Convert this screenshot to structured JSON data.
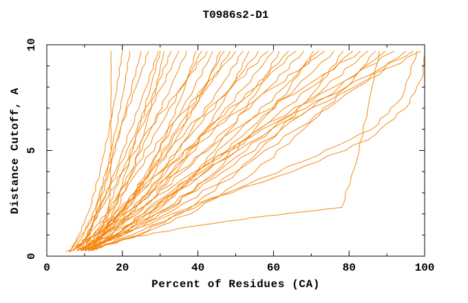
{
  "chart_data": {
    "type": "line",
    "title": "T0986s2-D1",
    "xlabel": "Percent of Residues (CA)",
    "ylabel": "Distance Cutoff, A",
    "xlim": [
      0,
      100
    ],
    "ylim": [
      0,
      10
    ],
    "x_major_ticks": [
      0,
      20,
      40,
      60,
      80,
      100
    ],
    "x_minor_step": 10,
    "y_major_ticks": [
      0,
      5,
      10
    ],
    "y_minor_step": 1,
    "grid": false,
    "legend": "none",
    "line_color": "#F5870F",
    "axis_color": "#000000",
    "background": "#FFFFFF",
    "series": [
      [
        [
          9,
          0.25
        ],
        [
          13,
          0.8
        ],
        [
          16,
          1.5
        ],
        [
          16.8,
          3
        ],
        [
          17,
          5
        ],
        [
          17,
          7.5
        ],
        [
          17,
          9.7
        ]
      ],
      [
        [
          7,
          0.25
        ],
        [
          9.7,
          1
        ],
        [
          12.7,
          2.2
        ],
        [
          15.7,
          4
        ],
        [
          18.3,
          6
        ],
        [
          20.5,
          8
        ],
        [
          22,
          9.7
        ]
      ],
      [
        [
          9,
          0.25
        ],
        [
          11,
          1
        ],
        [
          13.5,
          2.2
        ],
        [
          16.5,
          4
        ],
        [
          19.5,
          6
        ],
        [
          22.5,
          8
        ],
        [
          25,
          9.7
        ]
      ],
      [
        [
          10,
          0.25
        ],
        [
          11.4,
          1
        ],
        [
          13.1,
          2.2
        ],
        [
          16,
          4
        ],
        [
          19.4,
          6
        ],
        [
          23.6,
          8
        ],
        [
          27,
          9.7
        ]
      ],
      [
        [
          8,
          0.25
        ],
        [
          10.6,
          1
        ],
        [
          14,
          2.2
        ],
        [
          18.1,
          4
        ],
        [
          22.2,
          6
        ],
        [
          26.3,
          8
        ],
        [
          29.5,
          9.7
        ]
      ],
      [
        [
          11,
          0.25
        ],
        [
          14.6,
          1
        ],
        [
          18.6,
          2.2
        ],
        [
          22.6,
          4
        ],
        [
          26,
          6
        ],
        [
          29,
          8
        ],
        [
          31,
          9.7
        ]
      ],
      [
        [
          6,
          0.25
        ],
        [
          9.2,
          1
        ],
        [
          13.6,
          2.2
        ],
        [
          18.7,
          4
        ],
        [
          23.8,
          6
        ],
        [
          29,
          8
        ],
        [
          33,
          9.7
        ]
      ],
      [
        [
          12,
          0.25
        ],
        [
          13.8,
          1
        ],
        [
          16.1,
          2.2
        ],
        [
          20,
          4
        ],
        [
          24.6,
          6
        ],
        [
          30.4,
          8
        ],
        [
          35,
          9.7
        ]
      ],
      [
        [
          9,
          0.25
        ],
        [
          12.4,
          1
        ],
        [
          16.8,
          2.2
        ],
        [
          22.2,
          4
        ],
        [
          27.5,
          6
        ],
        [
          32.8,
          8
        ],
        [
          37,
          9.7
        ]
      ],
      [
        [
          10,
          0.25
        ],
        [
          15.3,
          1
        ],
        [
          21.2,
          2.2
        ],
        [
          27.1,
          4
        ],
        [
          32.1,
          6
        ],
        [
          36.6,
          8
        ],
        [
          39.5,
          9.7
        ]
      ],
      [
        [
          7,
          0.25
        ],
        [
          11.1,
          1
        ],
        [
          16.5,
          2.2
        ],
        [
          23,
          4
        ],
        [
          29.4,
          6
        ],
        [
          35.9,
          8
        ],
        [
          41,
          9.7
        ]
      ],
      [
        [
          8,
          0.25
        ],
        [
          10.8,
          1
        ],
        [
          14.2,
          2.2
        ],
        [
          20.1,
          4
        ],
        [
          27,
          6
        ],
        [
          35.6,
          8
        ],
        [
          42.5,
          9.7
        ]
      ],
      [
        [
          11,
          0.25
        ],
        [
          15,
          1
        ],
        [
          20.2,
          2.2
        ],
        [
          26.5,
          4
        ],
        [
          32.8,
          6
        ],
        [
          39.1,
          8
        ],
        [
          44,
          9.7
        ]
      ],
      [
        [
          5,
          0.2
        ],
        [
          12.4,
          1
        ],
        [
          20.6,
          2.2
        ],
        [
          28.8,
          4
        ],
        [
          35.8,
          6
        ],
        [
          41.9,
          8
        ],
        [
          46,
          9.7
        ]
      ],
      [
        [
          9,
          0.25
        ],
        [
          13.7,
          1
        ],
        [
          20.1,
          2.2
        ],
        [
          27.6,
          4
        ],
        [
          35.1,
          6
        ],
        [
          42.6,
          8
        ],
        [
          48.5,
          9.7
        ]
      ],
      [
        [
          10,
          0.25
        ],
        [
          13.2,
          1
        ],
        [
          17.2,
          2.2
        ],
        [
          24,
          4
        ],
        [
          32,
          6
        ],
        [
          42,
          8
        ],
        [
          50,
          9.7
        ]
      ],
      [
        [
          12,
          0.25
        ],
        [
          16.8,
          1
        ],
        [
          23.2,
          2.2
        ],
        [
          30.8,
          4
        ],
        [
          38.4,
          6
        ],
        [
          46,
          8
        ],
        [
          52,
          9.7
        ]
      ],
      [
        [
          8,
          0.25
        ],
        [
          16.2,
          1
        ],
        [
          25.3,
          2.2
        ],
        [
          34.4,
          4
        ],
        [
          42.1,
          6
        ],
        [
          49,
          8
        ],
        [
          53.5,
          9.7
        ]
      ],
      [
        [
          7,
          0.25
        ],
        [
          12.9,
          1
        ],
        [
          20.7,
          2.2
        ],
        [
          30,
          4
        ],
        [
          39.3,
          6
        ],
        [
          48.7,
          8
        ],
        [
          56,
          9.7
        ]
      ],
      [
        [
          11,
          0.25
        ],
        [
          14.8,
          1
        ],
        [
          19.6,
          2.2
        ],
        [
          27.6,
          4
        ],
        [
          37.1,
          6
        ],
        [
          49,
          8
        ],
        [
          58.5,
          9.7
        ]
      ],
      [
        [
          9,
          0.25
        ],
        [
          15.1,
          1
        ],
        [
          23.3,
          2.2
        ],
        [
          33,
          4
        ],
        [
          42.7,
          6
        ],
        [
          52.4,
          8
        ],
        [
          60,
          9.7
        ]
      ],
      [
        [
          10,
          0.25
        ],
        [
          19.3,
          1
        ],
        [
          29.6,
          2.2
        ],
        [
          39.9,
          4
        ],
        [
          48.6,
          6
        ],
        [
          56.4,
          8
        ],
        [
          61.5,
          9.7
        ]
      ],
      [
        [
          6,
          0.2
        ],
        [
          13,
          1
        ],
        [
          22.2,
          2.2
        ],
        [
          33.3,
          4
        ],
        [
          44.3,
          6
        ],
        [
          55.3,
          8
        ],
        [
          64,
          9.7
        ]
      ],
      [
        [
          13,
          0.3
        ],
        [
          17.2,
          1
        ],
        [
          22.5,
          2.2
        ],
        [
          31.6,
          4
        ],
        [
          42.2,
          6
        ],
        [
          55.4,
          8
        ],
        [
          66,
          9.7
        ]
      ],
      [
        [
          8,
          0.25
        ],
        [
          15.2,
          1
        ],
        [
          24.8,
          2.2
        ],
        [
          36.2,
          4
        ],
        [
          47.6,
          6
        ],
        [
          59,
          8
        ],
        [
          68,
          9.7
        ]
      ],
      [
        [
          9,
          0.25
        ],
        [
          20.1,
          1
        ],
        [
          32.4,
          2.2
        ],
        [
          44.7,
          4
        ],
        [
          55.1,
          6
        ],
        [
          64.4,
          8
        ],
        [
          70.5,
          9.7
        ]
      ],
      [
        [
          11,
          0.25
        ],
        [
          18.3,
          1
        ],
        [
          28.1,
          2.2
        ],
        [
          39.7,
          4
        ],
        [
          51.3,
          6
        ],
        [
          62.9,
          8
        ],
        [
          72,
          9.7
        ]
      ],
      [
        [
          7,
          0.25
        ],
        [
          12.3,
          1
        ],
        [
          19,
          2.2
        ],
        [
          30.3,
          4
        ],
        [
          43.6,
          6
        ],
        [
          60.2,
          8
        ],
        [
          73.5,
          9.7
        ]
      ],
      [
        [
          10,
          0.25
        ],
        [
          17.9,
          1
        ],
        [
          28.5,
          2.2
        ],
        [
          41,
          4
        ],
        [
          53.6,
          6
        ],
        [
          66.1,
          8
        ],
        [
          76,
          9.7
        ]
      ],
      [
        [
          12,
          0.3
        ],
        [
          24,
          1
        ],
        [
          37.3,
          2.2
        ],
        [
          50.6,
          4
        ],
        [
          61.9,
          6
        ],
        [
          71.9,
          8
        ],
        [
          78.5,
          9.7
        ]
      ],
      [
        [
          8,
          0.25
        ],
        [
          16.8,
          1
        ],
        [
          28.4,
          2.2
        ],
        [
          42.3,
          4
        ],
        [
          56.2,
          6
        ],
        [
          70.1,
          8
        ],
        [
          81,
          9.7
        ]
      ],
      [
        [
          9,
          0.25
        ],
        [
          14.9,
          1
        ],
        [
          22.3,
          2.2
        ],
        [
          34.9,
          4
        ],
        [
          49.7,
          6
        ],
        [
          68.2,
          8
        ],
        [
          83,
          9.7
        ]
      ],
      [
        [
          10,
          0.25
        ],
        [
          19,
          1
        ],
        [
          31,
          2.2
        ],
        [
          45.3,
          4
        ],
        [
          59.5,
          6
        ],
        [
          73.8,
          8
        ],
        [
          85,
          9.7
        ]
      ],
      [
        [
          11,
          0.25
        ],
        [
          24.7,
          1
        ],
        [
          39.9,
          2.2
        ],
        [
          55.1,
          4
        ],
        [
          68,
          6
        ],
        [
          79.4,
          8
        ],
        [
          87,
          9.7
        ]
      ],
      [
        [
          11,
          0.3
        ],
        [
          20,
          0.8
        ],
        [
          38,
          1.4
        ],
        [
          58,
          1.9
        ],
        [
          78,
          2.3
        ],
        [
          82,
          4.5
        ],
        [
          85,
          7
        ],
        [
          88,
          9.7
        ]
      ],
      [
        [
          9,
          0.25
        ],
        [
          18.7,
          1
        ],
        [
          31.5,
          2.2
        ],
        [
          46.8,
          4
        ],
        [
          62.1,
          6
        ],
        [
          77.4,
          8
        ],
        [
          89.5,
          9.7
        ]
      ],
      [
        [
          12,
          0.3
        ],
        [
          18.4,
          1
        ],
        [
          26.4,
          2.2
        ],
        [
          40,
          4
        ],
        [
          56,
          6
        ],
        [
          76,
          8
        ],
        [
          92,
          9.7
        ]
      ],
      [
        [
          10,
          0.25
        ],
        [
          20.2,
          1
        ],
        [
          33.8,
          2.2
        ],
        [
          50,
          4
        ],
        [
          66.1,
          6
        ],
        [
          82.3,
          8
        ],
        [
          95,
          9.7
        ]
      ],
      [
        [
          8,
          0.25
        ],
        [
          15.1,
          1
        ],
        [
          24,
          2.2
        ],
        [
          39.2,
          4
        ],
        [
          57,
          6
        ],
        [
          79.2,
          8
        ],
        [
          97,
          9.7
        ]
      ],
      [
        [
          11,
          0.25
        ],
        [
          18,
          1
        ],
        [
          26.8,
          2.2
        ],
        [
          41.8,
          4
        ],
        [
          59.4,
          6
        ],
        [
          81.4,
          8
        ],
        [
          99,
          9.7
        ]
      ],
      [
        [
          9,
          0.25
        ],
        [
          20,
          1
        ],
        [
          40,
          2.5
        ],
        [
          65,
          4
        ],
        [
          85,
          5.5
        ],
        [
          95,
          7
        ],
        [
          99.5,
          8.5
        ],
        [
          100,
          9.7
        ]
      ],
      [
        [
          13,
          0.3
        ],
        [
          15,
          1
        ],
        [
          17.8,
          2.2
        ],
        [
          21,
          4
        ],
        [
          24.2,
          6
        ],
        [
          27.5,
          8
        ],
        [
          30,
          9.7
        ]
      ],
      [
        [
          6,
          0.2
        ],
        [
          8.5,
          1
        ],
        [
          11.3,
          2.2
        ],
        [
          14.1,
          4
        ],
        [
          16.5,
          6
        ],
        [
          18.6,
          8
        ],
        [
          20,
          9.7
        ]
      ],
      [
        [
          10,
          0.25
        ],
        [
          14.4,
          1
        ],
        [
          20.4,
          2.2
        ],
        [
          27.4,
          4
        ],
        [
          34.4,
          6
        ],
        [
          41.5,
          8
        ],
        [
          47,
          9.7
        ]
      ],
      [
        [
          12,
          0.3
        ],
        [
          25,
          1.2
        ],
        [
          45,
          2.8
        ],
        [
          68,
          4.5
        ],
        [
          86,
          6
        ],
        [
          94,
          7.5
        ],
        [
          98,
          9.7
        ]
      ]
    ]
  }
}
